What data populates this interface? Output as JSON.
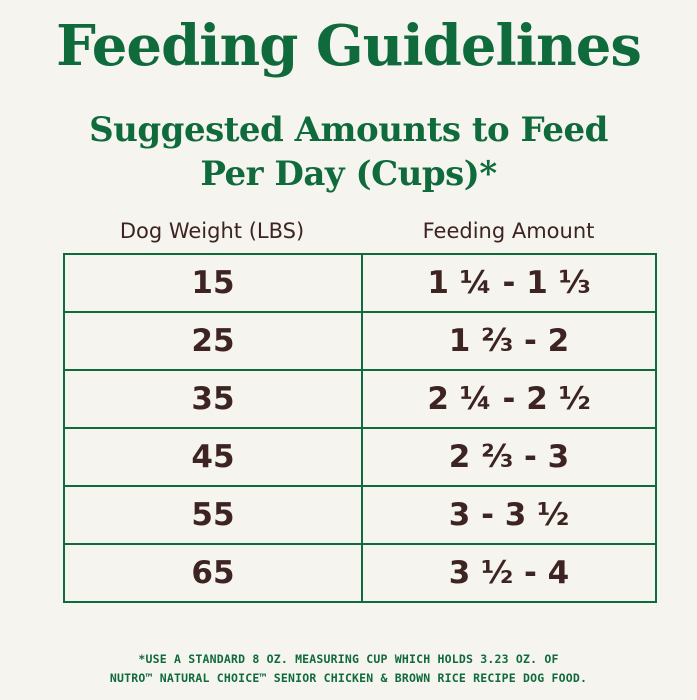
{
  "title": "Feeding Guidelines",
  "subtitle": {
    "line1": "Suggested Amounts to Feed",
    "line2": "Per Day (Cups)*"
  },
  "table": {
    "headers": [
      "Dog Weight (LBS)",
      "Feeding Amount"
    ],
    "rows": [
      [
        "15",
        "1 ¼ - 1 ⅓"
      ],
      [
        "25",
        "1 ⅔ - 2"
      ],
      [
        "35",
        "2 ¼ - 2 ½"
      ],
      [
        "45",
        "2 ⅔ - 3"
      ],
      [
        "55",
        "3 - 3 ½"
      ],
      [
        "65",
        "3 ½ - 4"
      ]
    ]
  },
  "footnote": {
    "line1": "*USE A STANDARD 8 OZ. MEASURING CUP WHICH HOLDS 3.23 OZ. OF",
    "line2": "NUTRO™ NATURAL CHOICE™ SENIOR CHICKEN & BROWN RICE RECIPE DOG FOOD."
  },
  "colors": {
    "brand_green": "#0f6a3c",
    "text_brown": "#3d2422",
    "background": "#f6f4ee"
  }
}
